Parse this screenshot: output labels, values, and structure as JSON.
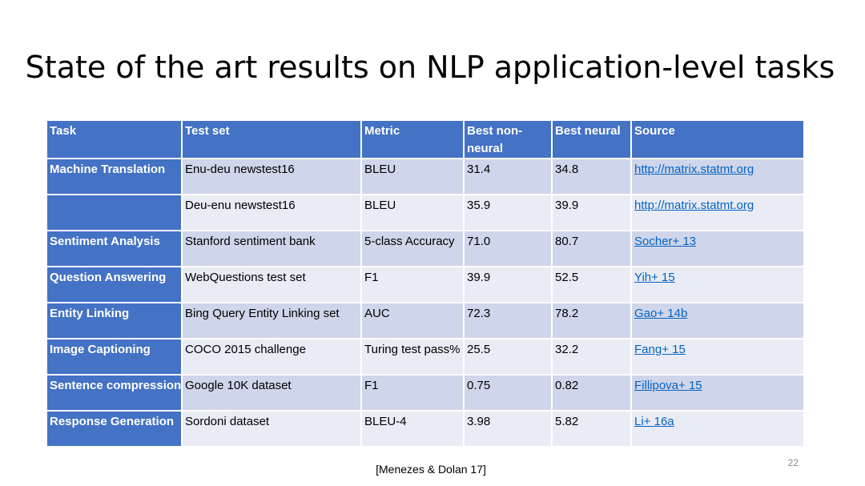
{
  "slide": {
    "title": "State of the art results on NLP application-level tasks",
    "citation": "[Menezes & Dolan 17]",
    "page_number": "22"
  },
  "table": {
    "headers": {
      "task": "Task",
      "test_set": "Test set",
      "metric": "Metric",
      "best_non_neural": "Best non-neural",
      "best_neural": "Best neural",
      "source": "Source"
    },
    "rows": [
      {
        "task": "Machine Translation",
        "test_set": "Enu-deu newstest16",
        "metric": "BLEU",
        "best_non_neural": "31.4",
        "best_neural": "34.8",
        "source": "http://matrix.statmt.org"
      },
      {
        "task": "",
        "test_set": "Deu-enu newstest16",
        "metric": "BLEU",
        "best_non_neural": "35.9",
        "best_neural": "39.9",
        "source": "http://matrix.statmt.org"
      },
      {
        "task": "Sentiment Analysis",
        "test_set": "Stanford sentiment bank",
        "metric": "5-class Accuracy",
        "best_non_neural": "71.0",
        "best_neural": "80.7",
        "source": "Socher+ 13"
      },
      {
        "task": "Question Answering",
        "test_set": "WebQuestions test set",
        "metric": "F1",
        "best_non_neural": "39.9",
        "best_neural": "52.5",
        "source": "Yih+ 15"
      },
      {
        "task": "Entity Linking",
        "test_set": "Bing Query Entity Linking set",
        "metric": "AUC",
        "best_non_neural": "72.3",
        "best_neural": "78.2",
        "source": "Gao+ 14b"
      },
      {
        "task": "Image Captioning",
        "test_set": "COCO 2015 challenge",
        "metric": "Turing test pass%",
        "best_non_neural": "25.5",
        "best_neural": "32.2",
        "source": "Fang+ 15"
      },
      {
        "task": "Sentence compression",
        "test_set": "Google 10K dataset",
        "metric": "F1",
        "best_non_neural": "0.75",
        "best_neural": "0.82",
        "source": "Fillipova+ 15"
      },
      {
        "task": "Response Generation",
        "test_set": "Sordoni dataset",
        "metric": "BLEU-4",
        "best_non_neural": "3.98",
        "best_neural": "5.82",
        "source": "Li+ 16a"
      }
    ]
  },
  "colors": {
    "header_bg": "#4472c4",
    "row_band_dark": "#cfd5ea",
    "row_band_light": "#e9ebf5",
    "link": "#0563c1"
  }
}
